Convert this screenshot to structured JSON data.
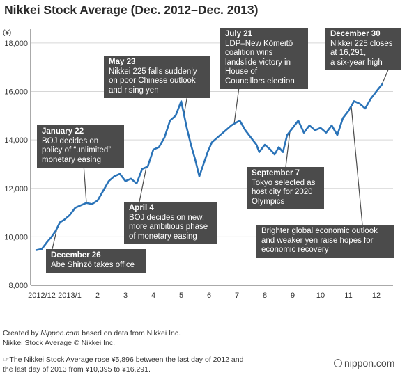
{
  "chart_data": {
    "type": "line",
    "title": "Nikkei Stock Average (Dec. 2012–Dec. 2013)",
    "ylabel": "(¥)",
    "ylim": [
      8000,
      18400
    ],
    "yticks": [
      8000,
      10000,
      12000,
      14000,
      16000,
      18000
    ],
    "ytick_labels": [
      "8,000",
      "10,000",
      "12,000",
      "14,000",
      "16,000",
      "18,000"
    ],
    "xlim": [
      0,
      12.6
    ],
    "xticks": [
      0,
      1,
      2,
      3,
      4,
      5,
      6,
      7,
      8,
      9,
      10,
      11,
      12
    ],
    "xtick_labels": [
      "2012/12",
      "2013/1",
      "2",
      "3",
      "4",
      "5",
      "6",
      "7",
      "8",
      "9",
      "10",
      "11",
      "12"
    ],
    "grid": "horizontal",
    "color": "#2a73b8",
    "series": [
      {
        "name": "",
        "x": [
          0,
          0.2,
          0.4,
          0.55,
          0.7,
          0.85,
          1.0,
          1.2,
          1.4,
          1.6,
          1.8,
          2.0,
          2.2,
          2.4,
          2.6,
          2.8,
          3.0,
          3.2,
          3.4,
          3.6,
          3.8,
          4.0,
          4.2,
          4.4,
          4.6,
          4.8,
          5.0,
          5.2,
          5.4,
          5.55,
          5.7,
          5.85,
          6.0,
          6.15,
          6.3,
          6.5,
          6.7,
          6.9,
          7.0,
          7.15,
          7.3,
          7.5,
          7.7,
          7.9,
          8.0,
          8.2,
          8.4,
          8.55,
          8.7,
          8.85,
          9.0,
          9.2,
          9.4,
          9.6,
          9.8,
          10.0,
          10.2,
          10.4,
          10.6,
          10.8,
          11.0,
          11.2,
          11.4,
          11.6,
          11.8,
          12.0,
          12.2,
          12.4
        ],
        "values": [
          9450,
          9500,
          9800,
          10000,
          10250,
          10600,
          10700,
          10900,
          11200,
          11300,
          11400,
          11350,
          11500,
          11900,
          12300,
          12500,
          12600,
          12300,
          12400,
          12200,
          12800,
          12900,
          13600,
          13700,
          14100,
          14800,
          15000,
          15600,
          14500,
          13800,
          13200,
          12500,
          13000,
          13500,
          13900,
          14100,
          14300,
          14500,
          14600,
          14700,
          14800,
          14400,
          14100,
          13800,
          13500,
          13800,
          13600,
          13400,
          13700,
          13500,
          14200,
          14500,
          14800,
          14300,
          14600,
          14400,
          14500,
          14300,
          14600,
          14200,
          14900,
          15200,
          15600,
          15500,
          15300,
          15700,
          16000,
          16291
        ]
      }
    ],
    "annotations": [
      {
        "date": "July 21",
        "text": "LDP–New Kōmeitō\ncoalition wins\nlandslide victory in\nHouse of\nCouncillors election"
      },
      {
        "date": "December 30",
        "text": "Nikkei 225 closes\nat 16,291,\na six-year high"
      },
      {
        "date": "May 23",
        "text": "Nikkei 225 falls suddenly\non poor Chinese outlook\nand rising yen"
      },
      {
        "date": "January 22",
        "text": "BOJ decides on\npolicy of “unlimited”\nmonetary easing"
      },
      {
        "date": "September 7",
        "text": "Tokyo selected as\nhost city for 2020\nOlympics"
      },
      {
        "date": "April 4",
        "text": "BOJ decides on new,\nmore ambitious phase\nof monetary easing"
      },
      {
        "date": "",
        "text": "Brighter global economic outlook\nand weaker yen raise hopes for\neconomic recovery"
      },
      {
        "date": "December 26",
        "text": "Abe Shinzō takes office"
      }
    ]
  },
  "footer": {
    "credit_prefix": "Created by ",
    "credit_site": "Nippon.com",
    "credit_suffix": " based on data from Nikkei Inc.",
    "copyright": "Nikkei Stock Average © Nikkei Inc.",
    "note_icon": "pointing-hand-icon",
    "note_line1": "☞The Nikkei Stock Average rose ¥5,896 between the last day of 2012 and",
    "note_line2": "the last day of 2013 from ¥10,395 to ¥16,291."
  },
  "logo": {
    "text": "nippon.com",
    "icon": "circle-logo-icon"
  }
}
